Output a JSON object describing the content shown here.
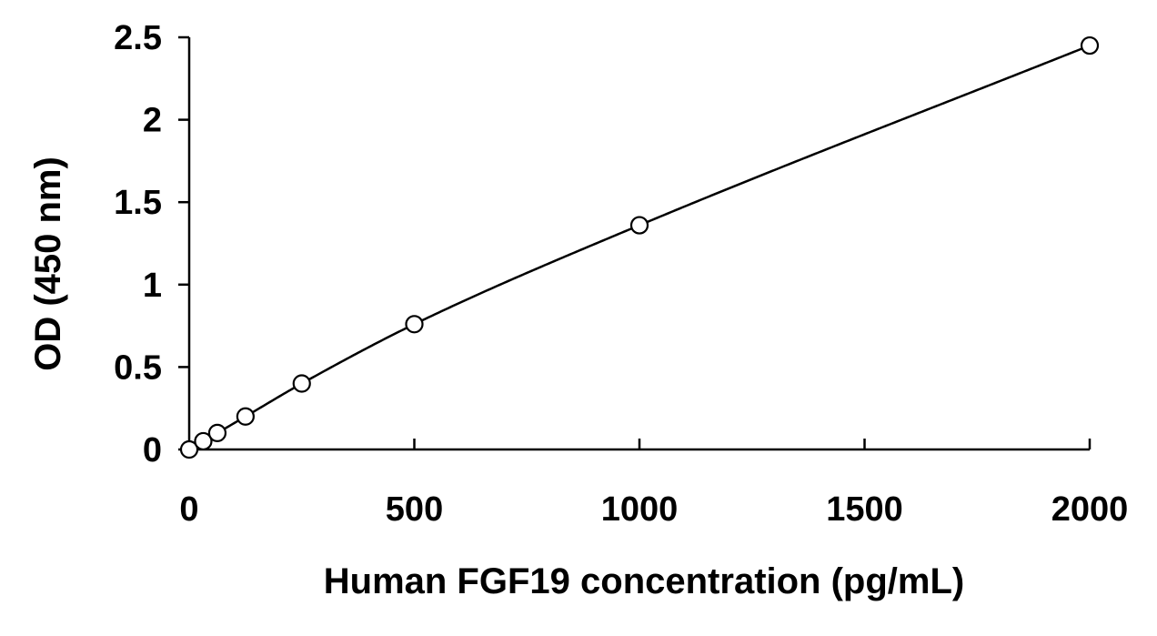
{
  "chart_data": {
    "type": "scatter",
    "xlabel": "Human FGF19 concentration (pg/mL)",
    "ylabel": "OD (450 nm)",
    "xlim": [
      0,
      2000
    ],
    "ylim": [
      0,
      2.5
    ],
    "x_ticks": [
      "0",
      "500",
      "1000",
      "1500",
      "2000"
    ],
    "y_ticks": [
      "0",
      "0.5",
      "1",
      "1.5",
      "2",
      "2.5"
    ],
    "grid": false,
    "legend": "none",
    "series": [
      {
        "x": [
          0,
          31.25,
          62.5,
          125,
          250,
          500,
          1000,
          2000
        ],
        "y": [
          0.0,
          0.05,
          0.1,
          0.2,
          0.4,
          0.76,
          1.36,
          2.45
        ],
        "marker": "open-circle",
        "fit": "smooth-curve"
      }
    ]
  }
}
